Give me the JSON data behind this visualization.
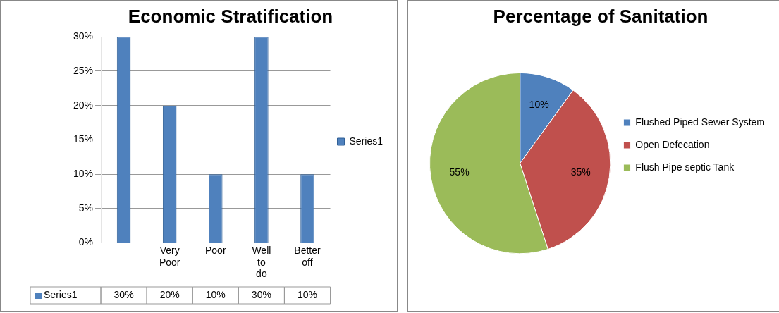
{
  "chart_data": [
    {
      "type": "bar",
      "title": "Economic Stratification",
      "categories": [
        null,
        "Very Poor",
        "Poor",
        "Well to do",
        "Better off"
      ],
      "series": [
        {
          "name": "Series1",
          "color": "#4f81bd",
          "values": [
            30,
            20,
            10,
            30,
            10
          ],
          "value_labels": [
            "30%",
            "20%",
            "10%",
            "30%",
            "10%"
          ]
        }
      ],
      "ylim": [
        0,
        30
      ],
      "yticks": [
        {
          "value": 0,
          "label": "0%"
        },
        {
          "value": 5,
          "label": "5%"
        },
        {
          "value": 10,
          "label": "10%"
        },
        {
          "value": 15,
          "label": "15%"
        },
        {
          "value": 20,
          "label": "20%"
        },
        {
          "value": 25,
          "label": "25%"
        },
        {
          "value": 30,
          "label": "30%"
        }
      ],
      "grid": "y",
      "legend": "right"
    },
    {
      "type": "pie",
      "title": "Percentage of Sanitation",
      "categories": [
        "Flushed Piped Sewer System",
        "Open Defecation",
        "Flush Pipe septic Tank"
      ],
      "values": [
        10,
        35,
        55
      ],
      "colors": [
        "#4f81bd",
        "#c0504d",
        "#9bbb59"
      ],
      "value_labels": [
        "10%",
        "35%",
        "55%"
      ],
      "legend": "right"
    }
  ]
}
